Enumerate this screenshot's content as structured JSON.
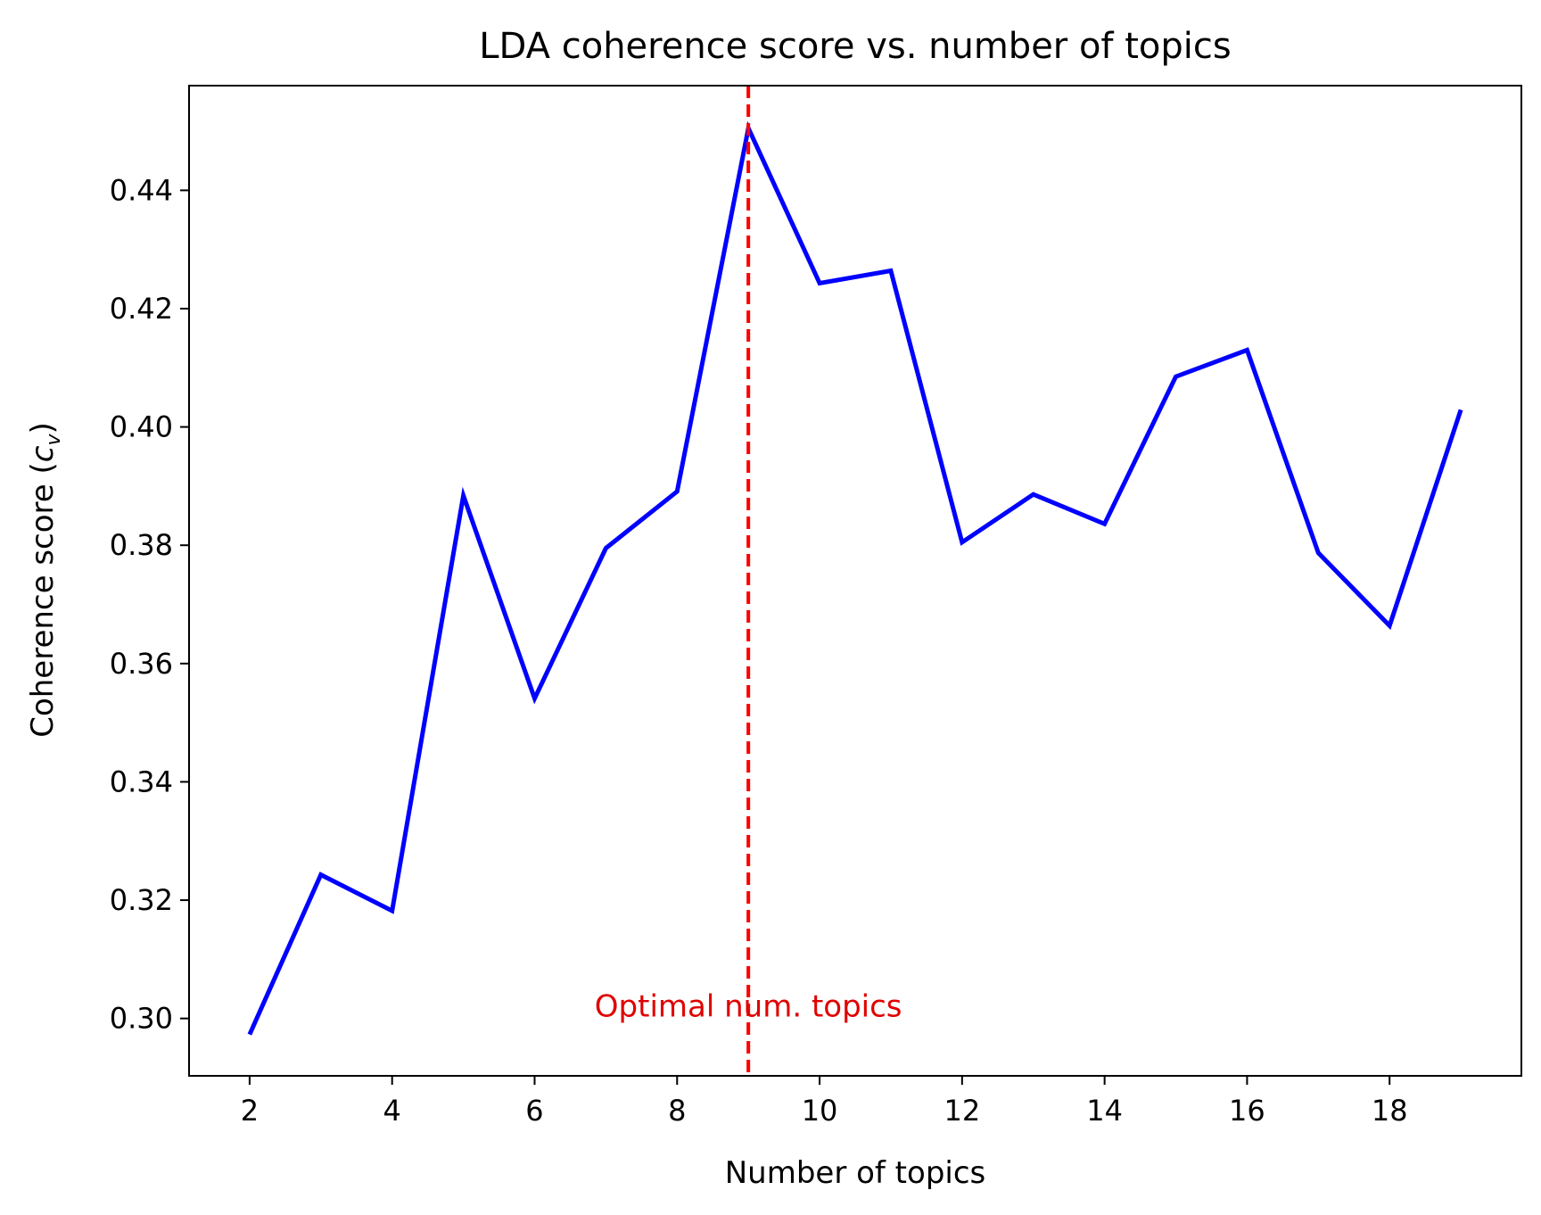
{
  "chart_data": {
    "type": "line",
    "title": "LDA coherence score vs. number of topics",
    "xlabel": "Number of topics",
    "ylabel_main": "Coherence score (",
    "ylabel_c": "c",
    "ylabel_sub": "v",
    "ylabel_close": ")",
    "xlim": [
      1.15,
      19.85
    ],
    "ylim": [
      0.2903,
      0.4577
    ],
    "x_ticks": [
      2,
      4,
      6,
      8,
      10,
      12,
      14,
      16,
      18
    ],
    "y_ticks": [
      0.3,
      0.32,
      0.34,
      0.36,
      0.38,
      0.4,
      0.42,
      0.44
    ],
    "grid": false,
    "series": [
      {
        "color": "#0000ff",
        "x": [
          2,
          3,
          4,
          5,
          6,
          7,
          8,
          9,
          10,
          11,
          12,
          13,
          14,
          15,
          16,
          17,
          18,
          19
        ],
        "y": [
          0.2973,
          0.3243,
          0.3182,
          0.3884,
          0.3541,
          0.3795,
          0.3891,
          0.4505,
          0.4243,
          0.4264,
          0.3805,
          0.3886,
          0.3836,
          0.4085,
          0.413,
          0.3787,
          0.3664,
          0.4029
        ]
      }
    ],
    "vline": {
      "x": 9,
      "color": "#ff0000",
      "style": "dashed"
    },
    "annotation": {
      "text": "Optimal num. topics",
      "x": 9,
      "y": 0.3,
      "color": "#e00000"
    }
  }
}
